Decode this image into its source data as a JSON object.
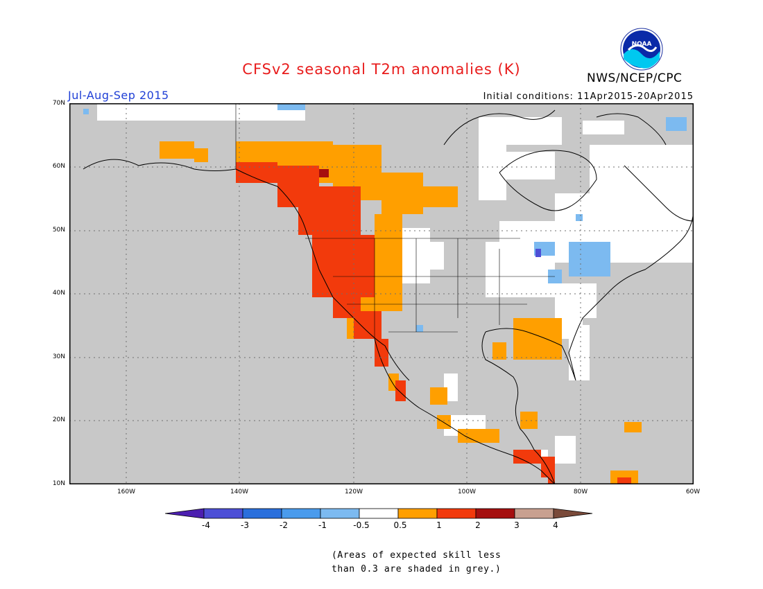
{
  "title": "CFSv2 seasonal T2m anomalies (K)",
  "subtitle": "Jul-Aug-Sep 2015",
  "initial_conditions": "Initial conditions: 11Apr2015-20Apr2015",
  "agency": "NWS/NCEP/CPC",
  "logo_text": "NOAA",
  "colors": {
    "title": "#e81c1c",
    "subtitle": "#1f3fd6",
    "grey": "#c8c8c8",
    "border": "#000000"
  },
  "lat_labels": [
    "70N",
    "60N",
    "50N",
    "40N",
    "30N",
    "20N",
    "10N"
  ],
  "lon_labels": [
    "160W",
    "140W",
    "120W",
    "100W",
    "80W",
    "60W"
  ],
  "colorbar": {
    "bins": [
      {
        "color": "#4c1fb0"
      },
      {
        "color": "#4d4fd6"
      },
      {
        "color": "#2a6fdc"
      },
      {
        "color": "#4a9bec"
      },
      {
        "color": "#7cbaf0"
      },
      {
        "color": "#ffffff"
      },
      {
        "color": "#ff9f00"
      },
      {
        "color": "#f23a0c"
      },
      {
        "color": "#a50f0f"
      },
      {
        "color": "#c8a090"
      },
      {
        "color": "#7a4a3a"
      }
    ],
    "labels": [
      "-4",
      "-3",
      "-2",
      "-1",
      "-0.5",
      "0.5",
      "1",
      "2",
      "3",
      "4"
    ]
  },
  "note_lines": [
    "(Areas of expected skill less",
    "than 0.3 are shaded in grey.)"
  ]
}
